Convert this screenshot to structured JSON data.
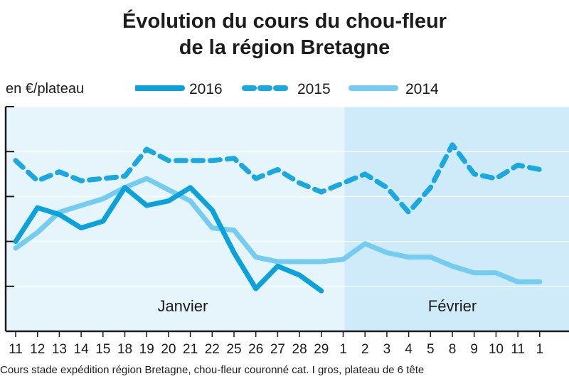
{
  "title_line1": "Évolution du cours du chou-fleur",
  "title_line2": "de la région Bretagne",
  "unit_label": "en €/plateau",
  "footnote": "Cours stade expédition région Bretagne, chou-fleur couronné cat. I gros, plateau de 6 tête",
  "colors": {
    "y2016": "#0ba2dc",
    "y2015": "#19a8e0",
    "y2014": "#74ccf0",
    "panel_january": "#e6f4fc",
    "panel_february": "#cfeaf8",
    "axis": "#1c1c1c"
  },
  "chart_data": {
    "type": "line",
    "title": "Évolution du cours du chou-fleur de la région Bretagne",
    "ylabel": "en €/plateau",
    "xlabel": "",
    "months": [
      {
        "label": "Janvier",
        "start_index": 0,
        "end_index": 15
      },
      {
        "label": "Février",
        "start_index": 16,
        "end_index": 25
      }
    ],
    "categories": [
      "11",
      "12",
      "13",
      "14",
      "15",
      "18",
      "19",
      "20",
      "21",
      "22",
      "25",
      "26",
      "27",
      "28",
      "29",
      "1",
      "2",
      "3",
      "4",
      "5",
      "8",
      "9",
      "10",
      "11",
      "1"
    ],
    "y_gridlines": 5,
    "y_tick_labels_visible": false,
    "ylim": [
      0,
      5
    ],
    "series": [
      {
        "name": "2016",
        "style": "solid",
        "values": [
          2.0,
          2.75,
          2.6,
          2.3,
          2.45,
          3.2,
          2.8,
          2.9,
          3.2,
          2.7,
          1.75,
          0.95,
          1.45,
          1.25,
          0.9,
          null,
          null,
          null,
          null,
          null,
          null,
          null,
          null,
          null,
          null
        ]
      },
      {
        "name": "2015",
        "style": "dashed",
        "values": [
          3.8,
          3.35,
          3.55,
          3.35,
          3.4,
          3.45,
          4.05,
          3.8,
          3.8,
          3.8,
          3.85,
          3.4,
          3.6,
          3.3,
          3.1,
          3.3,
          3.5,
          3.2,
          2.65,
          3.2,
          4.15,
          3.5,
          3.4,
          3.7,
          3.6
        ]
      },
      {
        "name": "2014",
        "style": "solid",
        "values": [
          1.85,
          2.2,
          2.65,
          2.8,
          2.95,
          3.2,
          3.4,
          3.15,
          2.9,
          2.3,
          2.25,
          1.65,
          1.55,
          1.55,
          1.55,
          1.6,
          1.95,
          1.75,
          1.65,
          1.65,
          1.45,
          1.3,
          1.3,
          1.1,
          1.1
        ]
      }
    ]
  },
  "legend": [
    {
      "label": "2016",
      "style": "solid",
      "color_key": "y2016"
    },
    {
      "label": "2015",
      "style": "dashed",
      "color_key": "y2015"
    },
    {
      "label": "2014",
      "style": "solid",
      "color_key": "y2014"
    }
  ]
}
